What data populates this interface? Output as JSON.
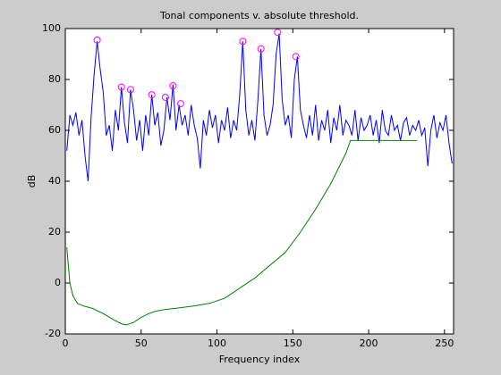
{
  "chart_data": {
    "type": "line",
    "title": "Tonal components v. absolute threshold.",
    "xlabel": "Frequency index",
    "ylabel": "dB",
    "xlim": [
      0,
      256
    ],
    "ylim": [
      -20,
      100
    ],
    "xticks": [
      0,
      50,
      100,
      150,
      200,
      250
    ],
    "yticks": [
      -20,
      0,
      20,
      40,
      60,
      80,
      100
    ],
    "grid": false,
    "series": [
      {
        "color": "#0000ff",
        "style": "line",
        "x": [
          1,
          3,
          5,
          7,
          9,
          11,
          13,
          15,
          17,
          19,
          21,
          23,
          25,
          27,
          29,
          31,
          33,
          35,
          37,
          39,
          41,
          43,
          45,
          47,
          49,
          51,
          53,
          55,
          57,
          59,
          61,
          63,
          65,
          67,
          69,
          71,
          73,
          75,
          77,
          79,
          81,
          83,
          85,
          87,
          89,
          91,
          93,
          95,
          97,
          99,
          101,
          103,
          105,
          107,
          109,
          111,
          113,
          115,
          117,
          119,
          121,
          123,
          125,
          127,
          129,
          131,
          133,
          135,
          137,
          139,
          141,
          143,
          145,
          147,
          149,
          151,
          153,
          155,
          157,
          159,
          161,
          163,
          165,
          167,
          169,
          171,
          173,
          175,
          177,
          179,
          181,
          183,
          185,
          187,
          189,
          191,
          193,
          195,
          197,
          199,
          201,
          203,
          205,
          207,
          209,
          211,
          213,
          215,
          217,
          219,
          221,
          223,
          225,
          227,
          229,
          231,
          233,
          235,
          237,
          239,
          241,
          243,
          245,
          247,
          249,
          251,
          253,
          255
        ],
        "values": [
          52,
          66,
          62,
          67,
          58,
          64,
          50,
          40,
          65,
          82,
          95,
          84,
          75,
          58,
          62,
          52,
          68,
          60,
          77,
          63,
          55,
          76,
          68,
          56,
          64,
          52,
          66,
          58,
          74,
          62,
          67,
          54,
          60,
          73,
          64,
          78,
          60,
          70,
          62,
          66,
          58,
          70,
          62,
          57,
          45,
          64,
          58,
          68,
          61,
          66,
          55,
          64,
          60,
          69,
          57,
          64,
          60,
          74,
          95,
          68,
          58,
          64,
          56,
          72,
          92,
          66,
          58,
          62,
          70,
          90,
          98,
          72,
          62,
          66,
          57,
          80,
          89,
          68,
          62,
          57,
          66,
          58,
          70,
          56,
          64,
          60,
          68,
          55,
          65,
          60,
          70,
          58,
          64,
          62,
          58,
          68,
          56,
          65,
          60,
          62,
          66,
          58,
          64,
          55,
          68,
          60,
          58,
          66,
          60,
          62,
          56,
          63,
          65,
          58,
          62,
          60,
          64,
          58,
          61,
          46,
          60,
          66,
          57,
          63,
          60,
          66,
          55,
          47
        ]
      },
      {
        "color": "#008000",
        "style": "line",
        "x": [
          1,
          3,
          5,
          8,
          12,
          18,
          25,
          32,
          37,
          40,
          45,
          50,
          55,
          60,
          65,
          75,
          85,
          95,
          105,
          115,
          125,
          135,
          145,
          155,
          165,
          175,
          185,
          188,
          200,
          215,
          232
        ],
        "values": [
          14,
          0,
          -5,
          -8,
          -9,
          -10,
          -12,
          -14.5,
          -16,
          -16.5,
          -15.5,
          -13.5,
          -12,
          -11,
          -10.5,
          -9.8,
          -9,
          -8,
          -6,
          -2,
          2,
          7,
          12,
          20,
          29,
          39,
          51,
          56,
          56,
          56,
          56
        ]
      },
      {
        "color": "#ff00ff",
        "style": "circle",
        "x": [
          21,
          37,
          43,
          57,
          66,
          71,
          76,
          117,
          129,
          140,
          152
        ],
        "values": [
          95.5,
          77,
          76,
          74,
          73,
          77.5,
          70.5,
          95,
          92,
          98.5,
          89
        ]
      }
    ]
  }
}
